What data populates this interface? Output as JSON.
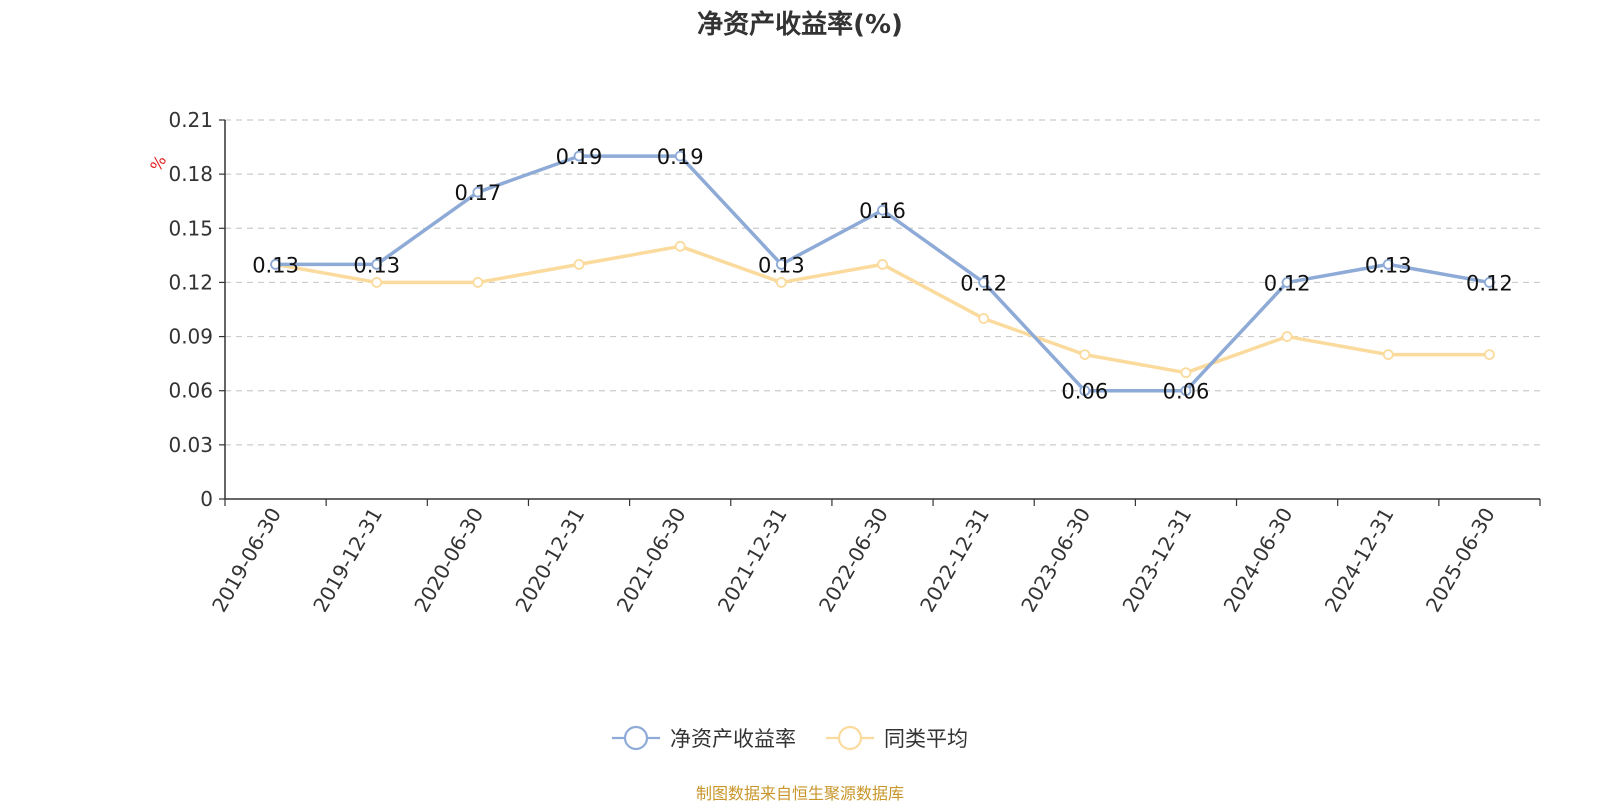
{
  "title": "净资产收益率(%)",
  "source": "制图数据来自恒生聚源数据库",
  "chart_data": {
    "type": "line",
    "title": "净资产收益率(%)",
    "ylabel": "%",
    "categories": [
      "2019-06-30",
      "2019-12-31",
      "2020-06-30",
      "2020-12-31",
      "2021-06-30",
      "2021-12-31",
      "2022-06-30",
      "2022-12-31",
      "2023-06-30",
      "2023-12-31",
      "2024-06-30",
      "2024-12-31",
      "2025-06-30"
    ],
    "ylim": [
      0,
      0.21
    ],
    "yticks": [
      "0",
      "0.03",
      "0.06",
      "0.09",
      "0.12",
      "0.15",
      "0.18",
      "0.21"
    ],
    "grid": true,
    "legend_position": "bottom-center",
    "series": [
      {
        "name": "净资产收益率",
        "color": "#8eaad6",
        "show_labels": true,
        "values": [
          0.13,
          0.13,
          0.17,
          0.19,
          0.19,
          0.13,
          0.16,
          0.12,
          0.06,
          0.06,
          0.12,
          0.13,
          0.12
        ]
      },
      {
        "name": "同类平均",
        "color": "#fbdb9d",
        "show_labels": false,
        "values": [
          0.13,
          0.12,
          0.12,
          0.13,
          0.14,
          0.12,
          0.13,
          0.1,
          0.08,
          0.07,
          0.09,
          0.08,
          0.08
        ]
      }
    ]
  }
}
